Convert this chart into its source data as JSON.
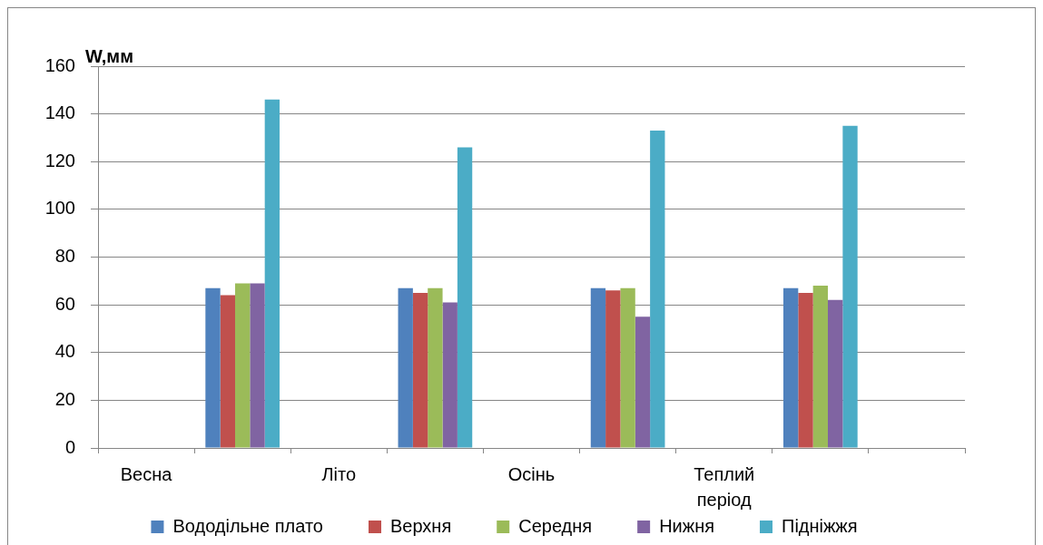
{
  "chart_data": {
    "type": "bar",
    "ylabel": "W,мм",
    "categories": [
      "Весна",
      null,
      "Літо",
      null,
      "Осінь",
      null,
      "Теплий період",
      null,
      null
    ],
    "series": [
      {
        "name": "Вододільне плато",
        "color": "#4f81bd",
        "values": [
          null,
          67,
          null,
          67,
          null,
          67,
          null,
          67,
          null
        ]
      },
      {
        "name": "Верхня",
        "color": "#c0504d",
        "values": [
          null,
          64,
          null,
          65,
          null,
          66,
          null,
          65,
          null
        ]
      },
      {
        "name": "Середня",
        "color": "#9bbb59",
        "values": [
          null,
          69,
          null,
          67,
          null,
          67,
          null,
          68,
          null
        ]
      },
      {
        "name": "Нижня",
        "color": "#8064a2",
        "values": [
          null,
          69,
          null,
          61,
          null,
          55,
          null,
          62,
          null
        ]
      },
      {
        "name": "Підніжжя",
        "color": "#4bacc6",
        "values": [
          null,
          146,
          null,
          126,
          null,
          133,
          null,
          135,
          null
        ]
      }
    ],
    "ylim": [
      0,
      160
    ],
    "yticks": [
      0,
      20,
      40,
      60,
      80,
      100,
      120,
      140,
      160
    ],
    "grid": "y",
    "legend": "bottom"
  }
}
